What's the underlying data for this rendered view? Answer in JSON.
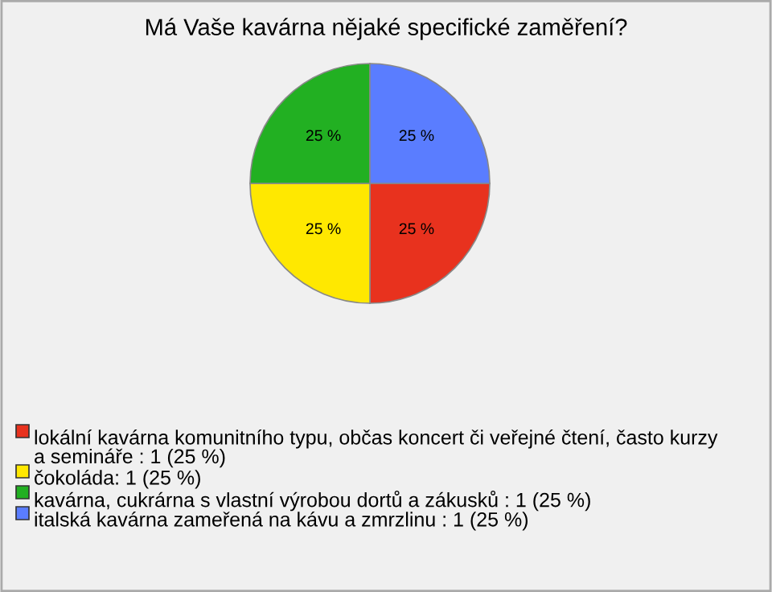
{
  "chart_data": {
    "type": "pie",
    "title": "Má Vaše kavárna nějaké specifické zaměření?",
    "categories": [
      "lokální kavárna komunitního typu, občas koncert či veřejné čtení, často kurzy a semináře : 1 (25 %)",
      "čokoláda: 1 (25 %)",
      "kavárna, cukrárna s vlastní výrobou dortů a zákusků : 1 (25 %)",
      "italská kavárna zameřená na kávu a zmrzlinu : 1 (25 %)"
    ],
    "values": [
      25,
      25,
      25,
      25
    ],
    "colors": [
      "#e8321e",
      "#ffe800",
      "#22b022",
      "#5a7dff"
    ],
    "value_labels": [
      "25 %",
      "25 %",
      "25 %",
      "25 %"
    ],
    "legend": "bottom"
  }
}
